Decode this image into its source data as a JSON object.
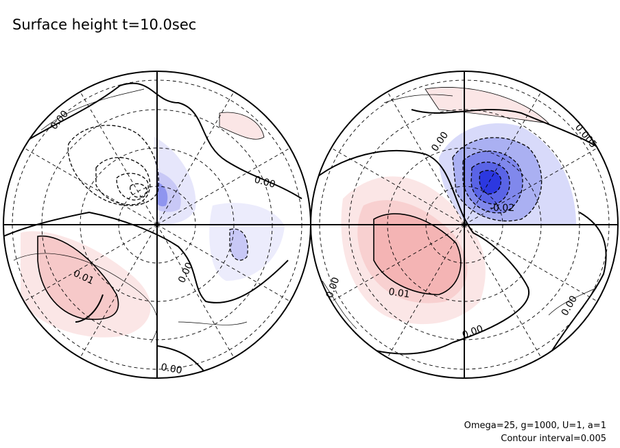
{
  "title": "Surface height t=10.0sec",
  "parameters": "Omega=25, g=1000, U=1, a=1",
  "contour_interval_text": "Contour interval=0.005",
  "colors": {
    "positive": "#f4b4b4",
    "negative": "#3048e8",
    "line": "#000000"
  },
  "contour_labels": {
    "left": [
      "0.00",
      "0.00",
      "0.01",
      "0.00",
      "0.00"
    ],
    "right": [
      "0.00",
      "0.005",
      "-0.02",
      "0.01",
      "0.00",
      "0.00",
      "0.00"
    ]
  }
}
